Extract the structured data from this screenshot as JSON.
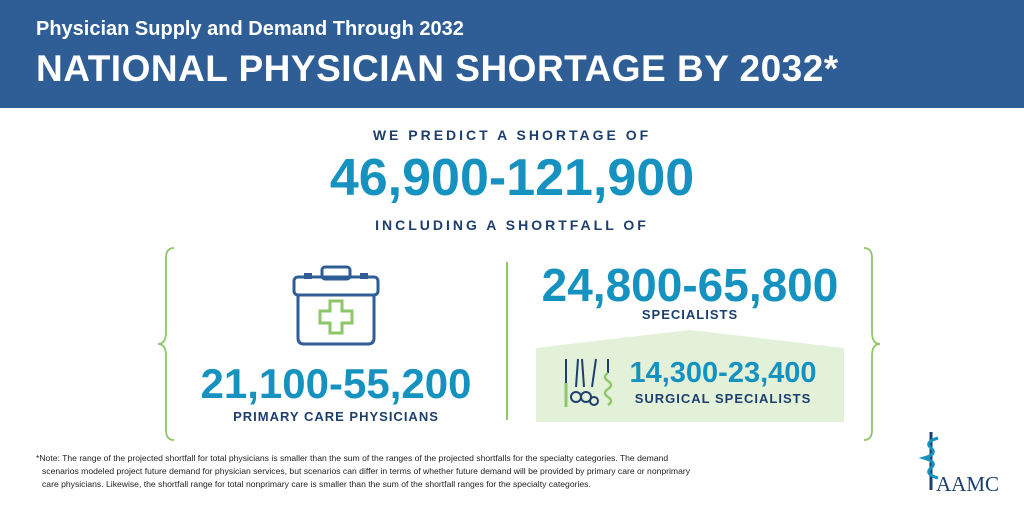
{
  "header": {
    "subtitle": "Physician Supply and Demand Through 2032",
    "title": "NATIONAL PHYSICIAN SHORTAGE BY 2032*"
  },
  "summary": {
    "lead": "WE PREDICT A SHORTAGE OF",
    "total_range": "46,900-121,900",
    "sub_lead": "INCLUDING A SHORTFALL OF"
  },
  "primary_care": {
    "range": "21,100-55,200",
    "label": "PRIMARY CARE PHYSICIANS",
    "icon": "first-aid-kit-icon"
  },
  "specialists": {
    "range": "24,800-65,800",
    "label": "SPECIALISTS"
  },
  "surgical": {
    "range": "14,300-23,400",
    "label": "SURGICAL SPECIALISTS",
    "icon": "surgical-tools-icon"
  },
  "note": {
    "line1": "*Note: The range of the projected shortfall for total physicians is smaller than the sum of the ranges of the projected shortfalls for the specialty categories. The demand",
    "line2": "scenarios modeled project future demand for physician services, but scenarios can differ in terms of whether future demand will be provided by primary care or nonprimary",
    "line3": "care physicians. Likewise, the shortfall range for total nonprimary care is smaller than the sum of the shortfall ranges for the specialty categories."
  },
  "logo": {
    "text": "AAMC",
    "icon": "caduceus-icon"
  },
  "colors": {
    "header_bg": "#2f5e97",
    "accent_blue": "#1592c0",
    "navy": "#1d3f6e",
    "green": "#8ec66a",
    "light_green": "#e3f1d9"
  }
}
